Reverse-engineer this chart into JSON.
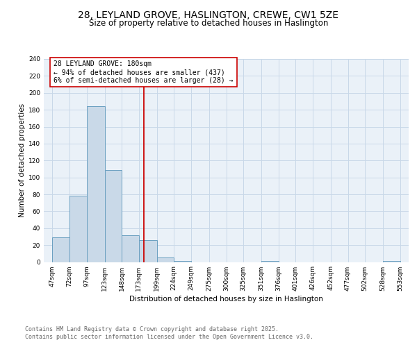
{
  "title_line1": "28, LEYLAND GROVE, HASLINGTON, CREWE, CW1 5ZE",
  "title_line2": "Size of property relative to detached houses in Haslington",
  "xlabel": "Distribution of detached houses by size in Haslington",
  "ylabel": "Number of detached properties",
  "bins": [
    47,
    72,
    97,
    123,
    148,
    173,
    199,
    224,
    249,
    275,
    300,
    325,
    351,
    376,
    401,
    426,
    452,
    477,
    502,
    528,
    553
  ],
  "counts": [
    29,
    78,
    184,
    109,
    32,
    26,
    5,
    1,
    0,
    0,
    0,
    0,
    1,
    0,
    0,
    0,
    0,
    0,
    0,
    1
  ],
  "bar_facecolor": "#c9d9e8",
  "bar_edgecolor": "#6a9fc0",
  "grid_color": "#c8d8e8",
  "background_color": "#eaf1f8",
  "vline_x": 180,
  "vline_color": "#cc0000",
  "annotation_text": "28 LEYLAND GROVE: 180sqm\n← 94% of detached houses are smaller (437)\n6% of semi-detached houses are larger (28) →",
  "annotation_box_color": "#ffffff",
  "annotation_box_edgecolor": "#cc0000",
  "annotation_fontsize": 7,
  "tick_labels": [
    "47sqm",
    "72sqm",
    "97sqm",
    "123sqm",
    "148sqm",
    "173sqm",
    "199sqm",
    "224sqm",
    "249sqm",
    "275sqm",
    "300sqm",
    "325sqm",
    "351sqm",
    "376sqm",
    "401sqm",
    "426sqm",
    "452sqm",
    "477sqm",
    "502sqm",
    "528sqm",
    "553sqm"
  ],
  "ylim": [
    0,
    240
  ],
  "yticks": [
    0,
    20,
    40,
    60,
    80,
    100,
    120,
    140,
    160,
    180,
    200,
    220,
    240
  ],
  "footnote_line1": "Contains HM Land Registry data © Crown copyright and database right 2025.",
  "footnote_line2": "Contains public sector information licensed under the Open Government Licence v3.0.",
  "title_fontsize": 10,
  "subtitle_fontsize": 8.5,
  "axis_label_fontsize": 7.5,
  "tick_fontsize": 6.5,
  "footnote_fontsize": 6.0
}
